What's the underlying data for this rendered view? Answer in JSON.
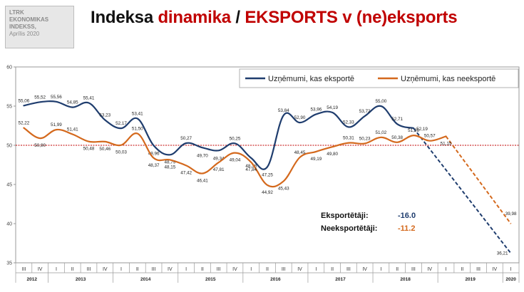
{
  "header": {
    "logo_lines": [
      "LTRK",
      "EKONOMIKAS",
      "INDEKSS,",
      "Aprīlis 2020"
    ],
    "title_part1": "Indeksa ",
    "title_part2": "dinamika",
    "title_part3": " / ",
    "title_part4": "EKSPORTS v (ne)eksports"
  },
  "colors": {
    "exporters": "#1f3d6e",
    "non_exporters": "#d4691d",
    "reference_line": "#c00000",
    "title_red": "#c00000"
  },
  "chart_data": {
    "type": "line",
    "title": "",
    "ylim": [
      35,
      60
    ],
    "yticks": [
      35,
      40,
      45,
      50,
      55,
      60
    ],
    "reference_line": 50,
    "grid": false,
    "legend_position": "top-right",
    "quarters": [
      "III",
      "IV",
      "I",
      "II",
      "III",
      "IV",
      "I",
      "II",
      "III",
      "IV",
      "I",
      "II",
      "III",
      "IV",
      "I",
      "II",
      "III",
      "IV",
      "I",
      "II",
      "III",
      "IV",
      "I",
      "II",
      "III",
      "IV",
      "I",
      "II",
      "III",
      "IV",
      "I"
    ],
    "years": [
      {
        "label": "2012",
        "start": 0,
        "end": 1
      },
      {
        "label": "2013",
        "start": 2,
        "end": 5
      },
      {
        "label": "2014",
        "start": 6,
        "end": 9
      },
      {
        "label": "2015",
        "start": 10,
        "end": 13
      },
      {
        "label": "2016",
        "start": 14,
        "end": 17
      },
      {
        "label": "2017",
        "start": 18,
        "end": 21
      },
      {
        "label": "2018",
        "start": 22,
        "end": 25
      },
      {
        "label": "2019",
        "start": 26,
        "end": 29
      },
      {
        "label": "2020",
        "start": 30,
        "end": 30
      }
    ],
    "series": [
      {
        "name": "Uzņēmumi, kas eksportē",
        "values": [
          55.06,
          55.52,
          55.56,
          54.85,
          55.41,
          53.23,
          52.17,
          53.41,
          49.96,
          48.79,
          50.27,
          49.7,
          49.34,
          50.25,
          48.38,
          47.25,
          53.84,
          52.9,
          53.96,
          54.19,
          52.33,
          53.72,
          55.0,
          52.71,
          52.19,
          null,
          null,
          null,
          null,
          null,
          36.21
        ],
        "projection": {
          "from_index": 24,
          "to_index": 30
        }
      },
      {
        "name": "Uzņēmumi, kas neeksportē",
        "values": [
          52.22,
          50.9,
          51.99,
          51.41,
          50.48,
          50.46,
          50.03,
          51.5,
          48.37,
          48.15,
          47.42,
          46.41,
          47.81,
          49.04,
          47.84,
          44.92,
          45.43,
          48.45,
          49.19,
          49.8,
          50.31,
          50.23,
          51.02,
          50.38,
          51.26,
          50.57,
          51.15,
          null,
          null,
          null,
          39.98
        ],
        "projection": {
          "from_index": 26,
          "to_index": 30
        }
      }
    ],
    "summary": [
      {
        "label": "Eksportētāji:",
        "value": "-16.0"
      },
      {
        "label": "Neeksportētāji:",
        "value": "-11.2"
      }
    ]
  }
}
